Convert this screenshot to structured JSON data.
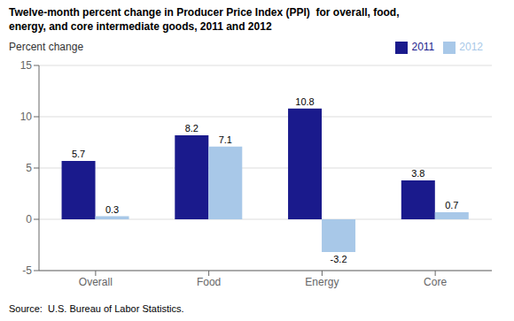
{
  "chart_data": {
    "type": "bar",
    "title": "Twelve-month percent change in Producer Price Index (PPI)  for overall, food,\nenergy, and core intermediate goods, 2011 and 2012",
    "ylabel": "Percent change",
    "source": "Source:  U.S. Bureau of Labor Statistics.",
    "categories": [
      "Overall",
      "Food",
      "Energy",
      "Core"
    ],
    "series": [
      {
        "name": "2011",
        "color": "#1a1a8c",
        "values": [
          5.7,
          8.2,
          10.8,
          3.8
        ]
      },
      {
        "name": "2012",
        "color": "#a8c8e8",
        "values": [
          0.3,
          7.1,
          -3.2,
          0.7
        ]
      }
    ],
    "ylim": [
      -5,
      15
    ],
    "yticks": [
      -5,
      0,
      5,
      10,
      15
    ],
    "grid": true,
    "legend": "upper right",
    "data_labels": true
  }
}
